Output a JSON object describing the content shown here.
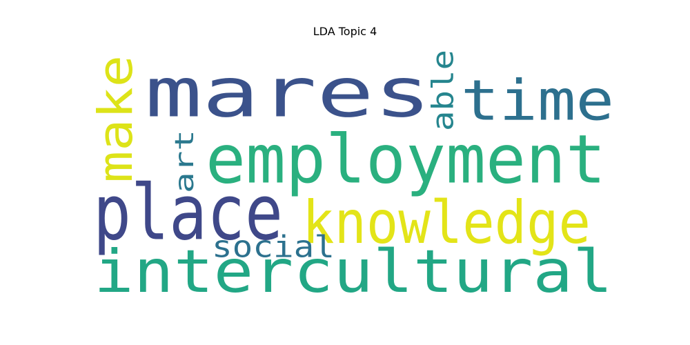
{
  "figure": {
    "title": "LDA Topic 4"
  },
  "chart_data": {
    "type": "wordcloud",
    "title": "LDA Topic 4",
    "background": "#ffffff",
    "colormap": "viridis",
    "words": [
      {
        "text": "mares",
        "rank": 1,
        "orientation": "horizontal",
        "color": "#3b528b"
      },
      {
        "text": "intercultural",
        "rank": 2,
        "orientation": "horizontal",
        "color": "#22a785"
      },
      {
        "text": "employment",
        "rank": 3,
        "orientation": "horizontal",
        "color": "#2ab07f"
      },
      {
        "text": "place",
        "rank": 4,
        "orientation": "horizontal",
        "color": "#3f4889"
      },
      {
        "text": "knowledge",
        "rank": 5,
        "orientation": "horizontal",
        "color": "#e3e418"
      },
      {
        "text": "time",
        "rank": 6,
        "orientation": "horizontal",
        "color": "#2d708e"
      },
      {
        "text": "make",
        "rank": 7,
        "orientation": "vertical",
        "color": "#dde318"
      },
      {
        "text": "able",
        "rank": 8,
        "orientation": "vertical",
        "color": "#25858e"
      },
      {
        "text": "social",
        "rank": 9,
        "orientation": "horizontal",
        "color": "#2c718e"
      },
      {
        "text": "art",
        "rank": 10,
        "orientation": "vertical",
        "color": "#2a788e"
      }
    ]
  }
}
